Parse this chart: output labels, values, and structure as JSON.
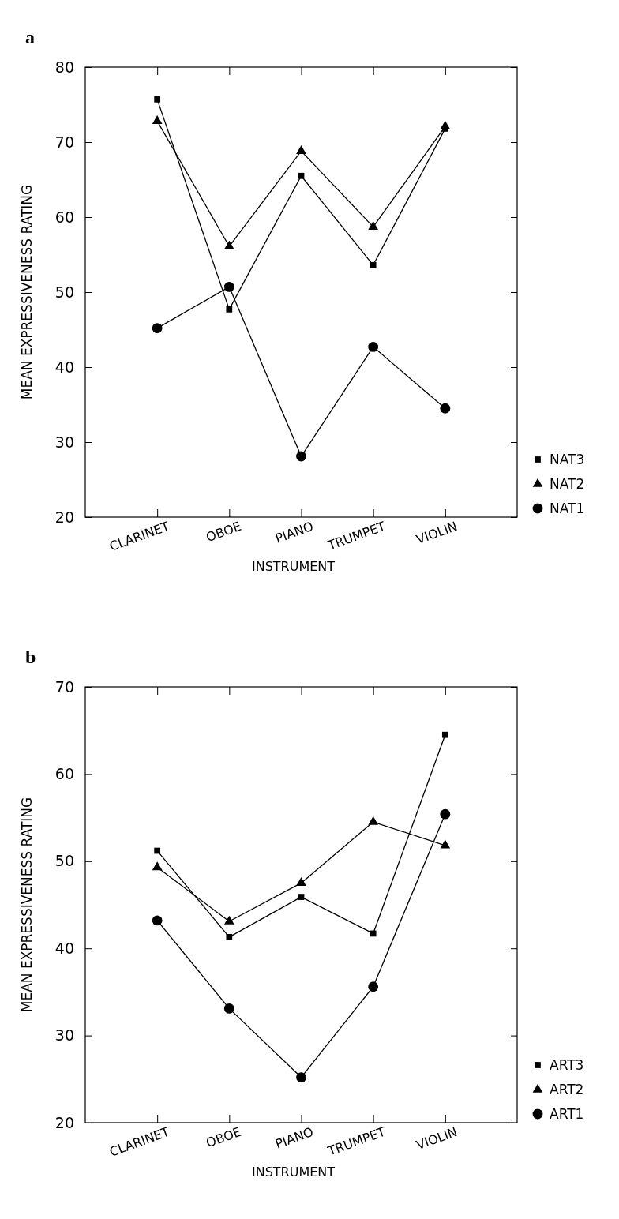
{
  "chart_data": [
    {
      "type": "line",
      "title": "a",
      "xlabel": "INSTRUMENT",
      "ylabel": "MEAN EXPRESSIVENESS RATING",
      "categories": [
        "CLARINET",
        "OBOE",
        "PIANO",
        "TRUMPET",
        "VIOLIN"
      ],
      "ylim": [
        20,
        80
      ],
      "yticks": [
        20,
        30,
        40,
        50,
        60,
        70,
        80
      ],
      "legend": "bottom right",
      "grid": false,
      "series": [
        {
          "name": "NAT3",
          "color": "#000000",
          "marker": "square",
          "values": [
            75.7,
            47.7,
            65.5,
            53.6,
            71.8
          ]
        },
        {
          "name": "NAT2",
          "color": "#000000",
          "marker": "triangle",
          "values": [
            72.8,
            56.1,
            68.8,
            58.7,
            72.1
          ]
        },
        {
          "name": "NAT1",
          "color": "#000000",
          "marker": "circle",
          "values": [
            45.2,
            50.7,
            28.1,
            42.7,
            34.5
          ]
        }
      ]
    },
    {
      "type": "line",
      "title": "b",
      "xlabel": "INSTRUMENT",
      "ylabel": "MEAN EXPRESSIVENESS RATING",
      "categories": [
        "CLARINET",
        "OBOE",
        "PIANO",
        "TRUMPET",
        "VIOLIN"
      ],
      "ylim": [
        20,
        70
      ],
      "yticks": [
        20,
        30,
        40,
        50,
        60,
        70
      ],
      "legend": "bottom right",
      "grid": false,
      "series": [
        {
          "name": "ART3",
          "color": "#000000",
          "marker": "square",
          "values": [
            51.2,
            41.3,
            45.9,
            41.7,
            64.5
          ]
        },
        {
          "name": "ART2",
          "color": "#000000",
          "marker": "triangle",
          "values": [
            49.3,
            43.1,
            47.5,
            54.5,
            51.8
          ]
        },
        {
          "name": "ART1",
          "color": "#000000",
          "marker": "circle",
          "values": [
            43.2,
            33.1,
            25.2,
            35.6,
            55.4
          ]
        }
      ]
    }
  ]
}
